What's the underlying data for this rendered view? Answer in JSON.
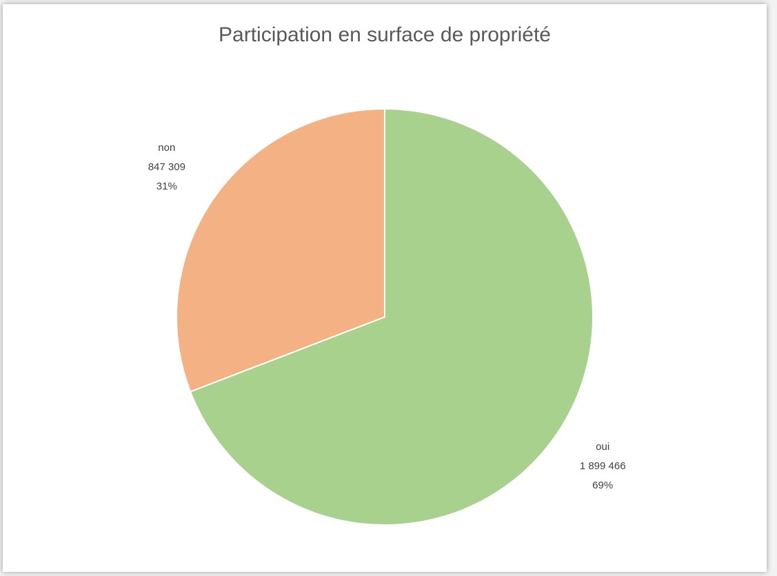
{
  "chart_data": {
    "type": "pie",
    "title": "Participation en surface de propriété",
    "categories": [
      "oui",
      "non"
    ],
    "values": [
      1899466,
      847309
    ],
    "value_labels": [
      "1 899 466",
      "847 309"
    ],
    "percent_labels": [
      "69%",
      "31%"
    ],
    "colors": [
      "#a9d18e",
      "#f4b183"
    ]
  }
}
